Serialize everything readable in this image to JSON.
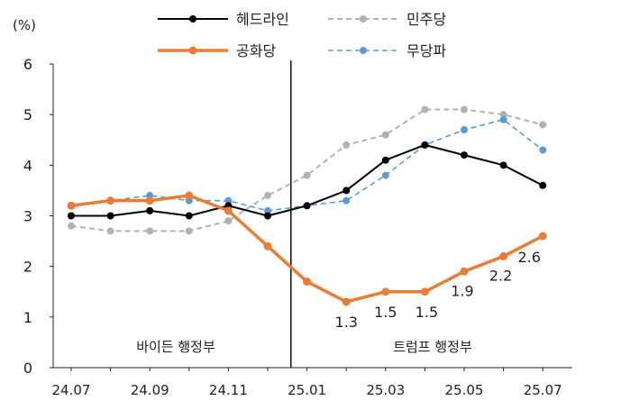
{
  "chart_data": {
    "type": "line",
    "unit_label": "(%)",
    "ylim": [
      0,
      6
    ],
    "yticks": [
      0,
      1,
      2,
      3,
      4,
      5,
      6
    ],
    "x": [
      "24.07",
      "24.08",
      "24.09",
      "24.10",
      "24.11",
      "24.12",
      "25.01",
      "25.02",
      "25.03",
      "25.04",
      "25.05",
      "25.06",
      "25.07"
    ],
    "x_tick_labels": [
      "24.07",
      "24.09",
      "24.11",
      "25.01",
      "25.03",
      "25.05",
      "25.07"
    ],
    "grid": false,
    "legend_position": "top",
    "regions": [
      "바이든 행정부",
      "트럼프 행정부"
    ],
    "series": [
      {
        "name": "헤드라인",
        "color": "#000000",
        "dash": false,
        "width": 2,
        "values": [
          3.0,
          3.0,
          3.1,
          3.0,
          3.2,
          3.0,
          3.2,
          3.5,
          4.1,
          4.4,
          4.2,
          4.0,
          3.6
        ]
      },
      {
        "name": "민주당",
        "color": "#b2b2b2",
        "dash": true,
        "width": 2,
        "values": [
          2.8,
          2.7,
          2.7,
          2.7,
          2.9,
          3.4,
          3.8,
          4.4,
          4.6,
          5.1,
          5.1,
          5.0,
          4.8
        ]
      },
      {
        "name": "공화당",
        "color": "#e87e36",
        "dash": false,
        "width": 3.5,
        "values": [
          3.2,
          3.3,
          3.3,
          3.4,
          3.1,
          2.4,
          1.7,
          1.3,
          1.5,
          1.5,
          1.9,
          2.2,
          2.6
        ]
      },
      {
        "name": "무당파",
        "color": "#5b9bd5",
        "dash": true,
        "width": 1.6,
        "values": [
          3.2,
          3.3,
          3.4,
          3.3,
          3.3,
          3.1,
          3.2,
          3.3,
          3.8,
          4.4,
          4.7,
          4.9,
          4.3
        ]
      }
    ],
    "annotations": [
      {
        "series": "공화당",
        "x": "25.02",
        "label": "1.3"
      },
      {
        "series": "공화당",
        "x": "25.03",
        "label": "1.5"
      },
      {
        "series": "공화당",
        "x": "25.04",
        "label": "1.5"
      },
      {
        "series": "공화당",
        "x": "25.05",
        "label": "1.9"
      },
      {
        "series": "공화당",
        "x": "25.06",
        "label": "2.2"
      },
      {
        "series": "공화당",
        "x": "25.07",
        "label": "2.6"
      }
    ]
  }
}
